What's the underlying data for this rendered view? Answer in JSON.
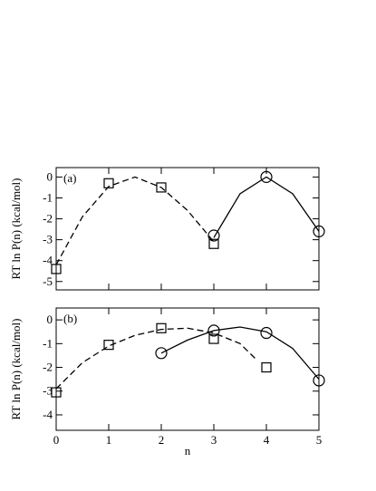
{
  "chart_data": [
    {
      "type": "line",
      "annotation": "(a)",
      "ylabel": "RT ln P(n)  (kcal/mol)",
      "xlim": [
        0,
        5
      ],
      "xticks": [
        0,
        1,
        2,
        3,
        4,
        5
      ],
      "ylim": [
        -5.4,
        0.45
      ],
      "yticks": [
        0,
        -1,
        -2,
        -3,
        -4,
        -5
      ],
      "series": [
        {
          "color": "#000000",
          "marker": "none",
          "dash": "dashed",
          "x": [
            0,
            0.5,
            1,
            1.5,
            2,
            2.5,
            3
          ],
          "values": [
            -4.2,
            -1.9,
            -0.45,
            0,
            -0.5,
            -1.6,
            -3.1
          ]
        },
        {
          "color": "#000000",
          "marker": "none",
          "dash": "solid",
          "x": [
            3,
            3.5,
            4,
            4.5,
            5
          ],
          "values": [
            -2.9,
            -0.8,
            0,
            -0.8,
            -2.6
          ]
        },
        {
          "color": "#000000",
          "marker": "square",
          "dash": "none",
          "x": [
            0,
            1,
            2,
            3
          ],
          "values": [
            -4.4,
            -0.3,
            -0.5,
            -3.2
          ]
        },
        {
          "color": "#000000",
          "marker": "circle",
          "dash": "none",
          "x": [
            3,
            4,
            5
          ],
          "values": [
            -2.8,
            0,
            -2.6
          ]
        }
      ]
    },
    {
      "type": "line",
      "annotation": "(b)",
      "ylabel": "RT ln P(n) (kcal/mol)",
      "xlabel": "n",
      "xlim": [
        0,
        5
      ],
      "xticks": [
        0,
        1,
        2,
        3,
        4,
        5
      ],
      "ylim": [
        -4.65,
        0.5
      ],
      "yticks": [
        0,
        -1,
        -2,
        -3,
        -4
      ],
      "series": [
        {
          "color": "#000000",
          "marker": "none",
          "dash": "dashed",
          "x": [
            0,
            0.5,
            1,
            1.5,
            2,
            2.5,
            3,
            3.5,
            3.8
          ],
          "values": [
            -2.9,
            -1.8,
            -1.1,
            -0.65,
            -0.4,
            -0.35,
            -0.55,
            -1.0,
            -1.65
          ]
        },
        {
          "color": "#000000",
          "marker": "none",
          "dash": "solid",
          "x": [
            2,
            2.5,
            3,
            3.5,
            4,
            4.5,
            5
          ],
          "values": [
            -1.4,
            -0.85,
            -0.45,
            -0.3,
            -0.5,
            -1.2,
            -2.5
          ]
        },
        {
          "color": "#000000",
          "marker": "square",
          "dash": "none",
          "x": [
            0,
            1,
            2,
            3,
            4
          ],
          "values": [
            -3.05,
            -1.05,
            -0.35,
            -0.8,
            -2.0
          ]
        },
        {
          "color": "#000000",
          "marker": "circle",
          "dash": "none",
          "x": [
            2,
            3,
            4,
            5
          ],
          "values": [
            -1.4,
            -0.45,
            -0.55,
            -2.55
          ]
        }
      ]
    }
  ]
}
